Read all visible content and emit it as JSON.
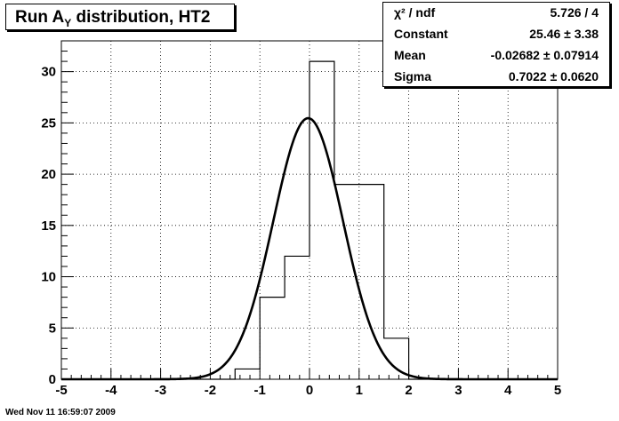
{
  "title": {
    "prefix": "Run A",
    "subscript": "Y",
    "suffix": " distribution, HT2"
  },
  "stats": [
    {
      "key": "χ² / ndf",
      "value": "5.726 / 4"
    },
    {
      "key": "Constant",
      "value": "25.46 ± 3.38"
    },
    {
      "key": "Mean",
      "value": "-0.02682 ± 0.07914"
    },
    {
      "key": "Sigma",
      "value": "0.7022 ± 0.0620"
    }
  ],
  "timestamp": "Wed Nov 11 16:59:07 2009",
  "chart_data": {
    "type": "bar",
    "title": "Run A_Y distribution, HT2",
    "xlim": [
      -5,
      5
    ],
    "ylim": [
      0,
      33
    ],
    "grid": true,
    "xticks": [
      -5,
      -4,
      -3,
      -2,
      -1,
      0,
      1,
      2,
      3,
      4,
      5
    ],
    "yticks": [
      0,
      5,
      10,
      15,
      20,
      25,
      30
    ],
    "bin_edges": [
      -5,
      -4.5,
      -4,
      -3.5,
      -3,
      -2.5,
      -2,
      -1.5,
      -1,
      -0.5,
      0,
      0.5,
      1,
      1.5,
      2,
      2.5,
      3,
      3.5,
      4,
      4.5,
      5
    ],
    "counts": [
      0,
      0,
      0,
      0,
      0,
      0,
      0,
      1,
      8,
      12,
      31,
      19,
      19,
      4,
      0,
      0,
      0,
      0,
      0,
      0
    ],
    "fit": {
      "function": "gaus",
      "constant": 25.46,
      "mean": -0.02682,
      "sigma": 0.7022
    }
  }
}
